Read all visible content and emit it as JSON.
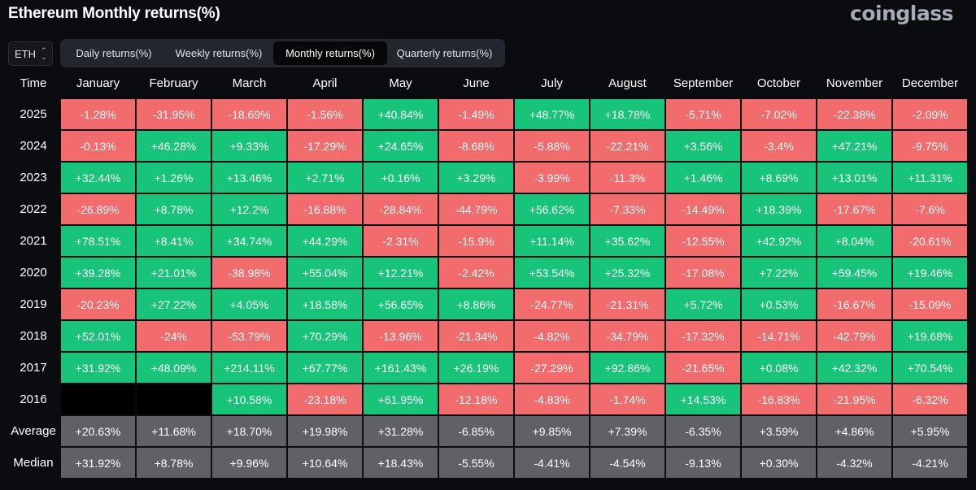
{
  "header": {
    "title": "Ethereum Monthly returns(%)",
    "brand": "coinglass"
  },
  "asset_selector": {
    "value": "ETH",
    "chevron_up": "⌃",
    "chevron_down": "⌄"
  },
  "tabs": [
    {
      "label": "Daily returns(%)",
      "active": false
    },
    {
      "label": "Weekly returns(%)",
      "active": false
    },
    {
      "label": "Monthly returns(%)",
      "active": true
    },
    {
      "label": "Quarterly returns(%)",
      "active": false
    }
  ],
  "colors": {
    "positive": "#17c479",
    "negative": "#f26b6d",
    "summary": "#5f6165",
    "empty": "#000000",
    "background": "#0b0c10"
  },
  "table": {
    "time_header": "Time",
    "months": [
      "January",
      "February",
      "March",
      "April",
      "May",
      "June",
      "July",
      "August",
      "September",
      "October",
      "November",
      "December"
    ],
    "rows": [
      {
        "label": "2025",
        "values": [
          "-1.28%",
          "-31.95%",
          "-18.69%",
          "-1.56%",
          "+40.84%",
          "-1.49%",
          "+48.77%",
          "+18.78%",
          "-5.71%",
          "-7.02%",
          "-22.38%",
          "-2.09%"
        ]
      },
      {
        "label": "2024",
        "values": [
          "-0.13%",
          "+46.28%",
          "+9.33%",
          "-17.29%",
          "+24.65%",
          "-8.68%",
          "-5.88%",
          "-22.21%",
          "+3.56%",
          "-3.4%",
          "+47.21%",
          "-9.75%"
        ]
      },
      {
        "label": "2023",
        "values": [
          "+32.44%",
          "+1.26%",
          "+13.46%",
          "+2.71%",
          "+0.16%",
          "+3.29%",
          "-3.99%",
          "-11.3%",
          "+1.46%",
          "+8.69%",
          "+13.01%",
          "+11.31%"
        ]
      },
      {
        "label": "2022",
        "values": [
          "-26.89%",
          "+8.78%",
          "+12.2%",
          "-16.88%",
          "-28.84%",
          "-44.79%",
          "+56.62%",
          "-7.33%",
          "-14.49%",
          "+18.39%",
          "-17.67%",
          "-7.6%"
        ]
      },
      {
        "label": "2021",
        "values": [
          "+78.51%",
          "+8.41%",
          "+34.74%",
          "+44.29%",
          "-2.31%",
          "-15.9%",
          "+11.14%",
          "+35.62%",
          "-12.55%",
          "+42.92%",
          "+8.04%",
          "-20.61%"
        ]
      },
      {
        "label": "2020",
        "values": [
          "+39.28%",
          "+21.01%",
          "-38.98%",
          "+55.04%",
          "+12.21%",
          "-2.42%",
          "+53.54%",
          "+25.32%",
          "-17.08%",
          "+7.22%",
          "+59.45%",
          "+19.46%"
        ]
      },
      {
        "label": "2019",
        "values": [
          "-20.23%",
          "+27.22%",
          "+4.05%",
          "+18.58%",
          "+56.65%",
          "+8.86%",
          "-24.77%",
          "-21.31%",
          "+5.72%",
          "+0.53%",
          "-16.67%",
          "-15.09%"
        ]
      },
      {
        "label": "2018",
        "values": [
          "+52.01%",
          "-24%",
          "-53.79%",
          "+70.29%",
          "-13.96%",
          "-21.34%",
          "-4.82%",
          "-34.79%",
          "-17.32%",
          "-14.71%",
          "-42.79%",
          "+19.68%"
        ]
      },
      {
        "label": "2017",
        "values": [
          "+31.92%",
          "+48.09%",
          "+214.11%",
          "+67.77%",
          "+161.43%",
          "+26.19%",
          "-27.29%",
          "+92.86%",
          "-21.65%",
          "+0.08%",
          "+42.32%",
          "+70.54%"
        ]
      },
      {
        "label": "2016",
        "values": [
          "",
          "",
          "+10.58%",
          "-23.18%",
          "+61.95%",
          "-12.18%",
          "-4.83%",
          "-1.74%",
          "+14.53%",
          "-16.83%",
          "-21.95%",
          "-6.32%"
        ]
      }
    ],
    "summary_rows": [
      {
        "label": "Average",
        "values": [
          "+20.63%",
          "+11.68%",
          "+18.70%",
          "+19.98%",
          "+31.28%",
          "-6.85%",
          "+9.85%",
          "+7.39%",
          "-6.35%",
          "+3.59%",
          "+4.86%",
          "+5.95%"
        ]
      },
      {
        "label": "Median",
        "values": [
          "+31.92%",
          "+8.78%",
          "+9.96%",
          "+10.64%",
          "+18.43%",
          "-5.55%",
          "-4.41%",
          "-4.54%",
          "-9.13%",
          "+0.30%",
          "-4.32%",
          "-4.21%"
        ]
      }
    ]
  }
}
